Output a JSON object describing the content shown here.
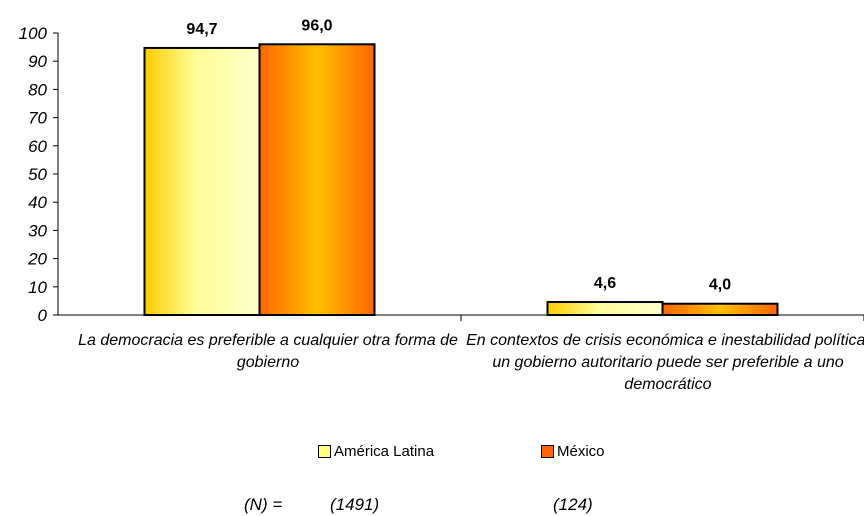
{
  "chart_data": {
    "type": "bar",
    "categories": [
      "La democracia es preferible a cualquier otra forma de gobierno",
      "En contextos de crisis económica e inestabilidad política, un gobierno autoritario puede ser preferible a uno democrático"
    ],
    "series": [
      {
        "name": "América Latina",
        "values": [
          94.7,
          4.6
        ],
        "labels": [
          "94,7",
          "4,6"
        ],
        "color": "#ffff80"
      },
      {
        "name": "México",
        "values": [
          96.0,
          4.0
        ],
        "labels": [
          "96,0",
          "4,0"
        ],
        "color": "#ff6600"
      }
    ],
    "yticks": [
      "0",
      "10",
      "20",
      "30",
      "40",
      "50",
      "60",
      "70",
      "80",
      "90",
      "100"
    ],
    "ylim": [
      0,
      100
    ],
    "grid": false,
    "legend": "bottom"
  },
  "sample_size": {
    "label": "(N) =",
    "america_latina": "(1491)",
    "mexico": "(124)"
  }
}
